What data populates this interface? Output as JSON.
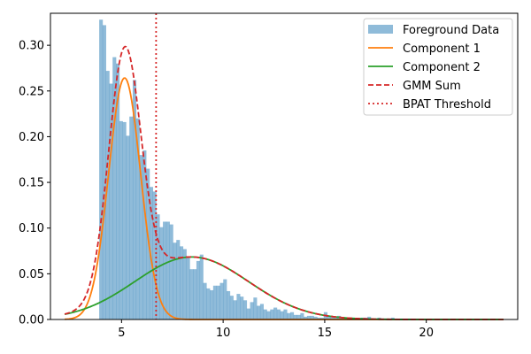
{
  "chart_data": {
    "type": "histogram-with-curves",
    "title": "",
    "xlabel": "",
    "ylabel": "",
    "xlim": [
      1.5,
      24.5
    ],
    "ylim": [
      0,
      0.335
    ],
    "x_ticks": [
      5,
      10,
      15,
      20
    ],
    "y_ticks": [
      0.0,
      0.05,
      0.1,
      0.15,
      0.2,
      0.25,
      0.3
    ],
    "grid": false,
    "legend_position": "top-right",
    "colors": {
      "histogram": "#1f77b4",
      "component1": "#ff7f0e",
      "component2": "#2ca02c",
      "gmm_sum": "#d62728",
      "threshold": "#d62728"
    },
    "histogram": {
      "name": "Foreground Data",
      "bin_start": 3.9,
      "bin_width": 0.165,
      "densities": [
        0.328,
        0.322,
        0.272,
        0.258,
        0.287,
        0.28,
        0.217,
        0.216,
        0.201,
        0.222,
        0.262,
        0.22,
        0.18,
        0.185,
        0.165,
        0.145,
        0.14,
        0.115,
        0.101,
        0.107,
        0.107,
        0.104,
        0.084,
        0.087,
        0.08,
        0.077,
        0.068,
        0.055,
        0.055,
        0.064,
        0.071,
        0.04,
        0.034,
        0.032,
        0.037,
        0.037,
        0.04,
        0.044,
        0.031,
        0.026,
        0.021,
        0.028,
        0.025,
        0.021,
        0.012,
        0.019,
        0.024,
        0.015,
        0.017,
        0.011,
        0.009,
        0.011,
        0.013,
        0.011,
        0.009,
        0.011,
        0.007,
        0.008,
        0.005,
        0.005,
        0.007,
        0.003,
        0.004,
        0.004,
        0.003,
        0.002,
        0.002,
        0.008,
        0.004,
        0.003,
        0.002,
        0.004,
        0.002,
        0.001,
        0.001,
        0.002,
        0.001,
        0.001,
        0.002,
        0.002,
        0.003,
        0.001,
        0.001,
        0.002,
        0.001,
        0.001,
        0.001,
        0.002,
        0.001
      ]
    },
    "components": [
      {
        "name": "Component 1",
        "weight": 0.52,
        "mean": 5.15,
        "sd": 0.785
      },
      {
        "name": "Component 2",
        "weight": 0.48,
        "mean": 8.45,
        "sd": 2.8
      }
    ],
    "curve_x_range": [
      2.2,
      23.8
    ],
    "gmm_sum_name": "GMM Sum",
    "threshold": {
      "name": "BPAT Threshold",
      "x": 6.7
    },
    "legend": [
      "Foreground Data",
      "Component 1",
      "Component 2",
      "GMM Sum",
      "BPAT Threshold"
    ]
  }
}
